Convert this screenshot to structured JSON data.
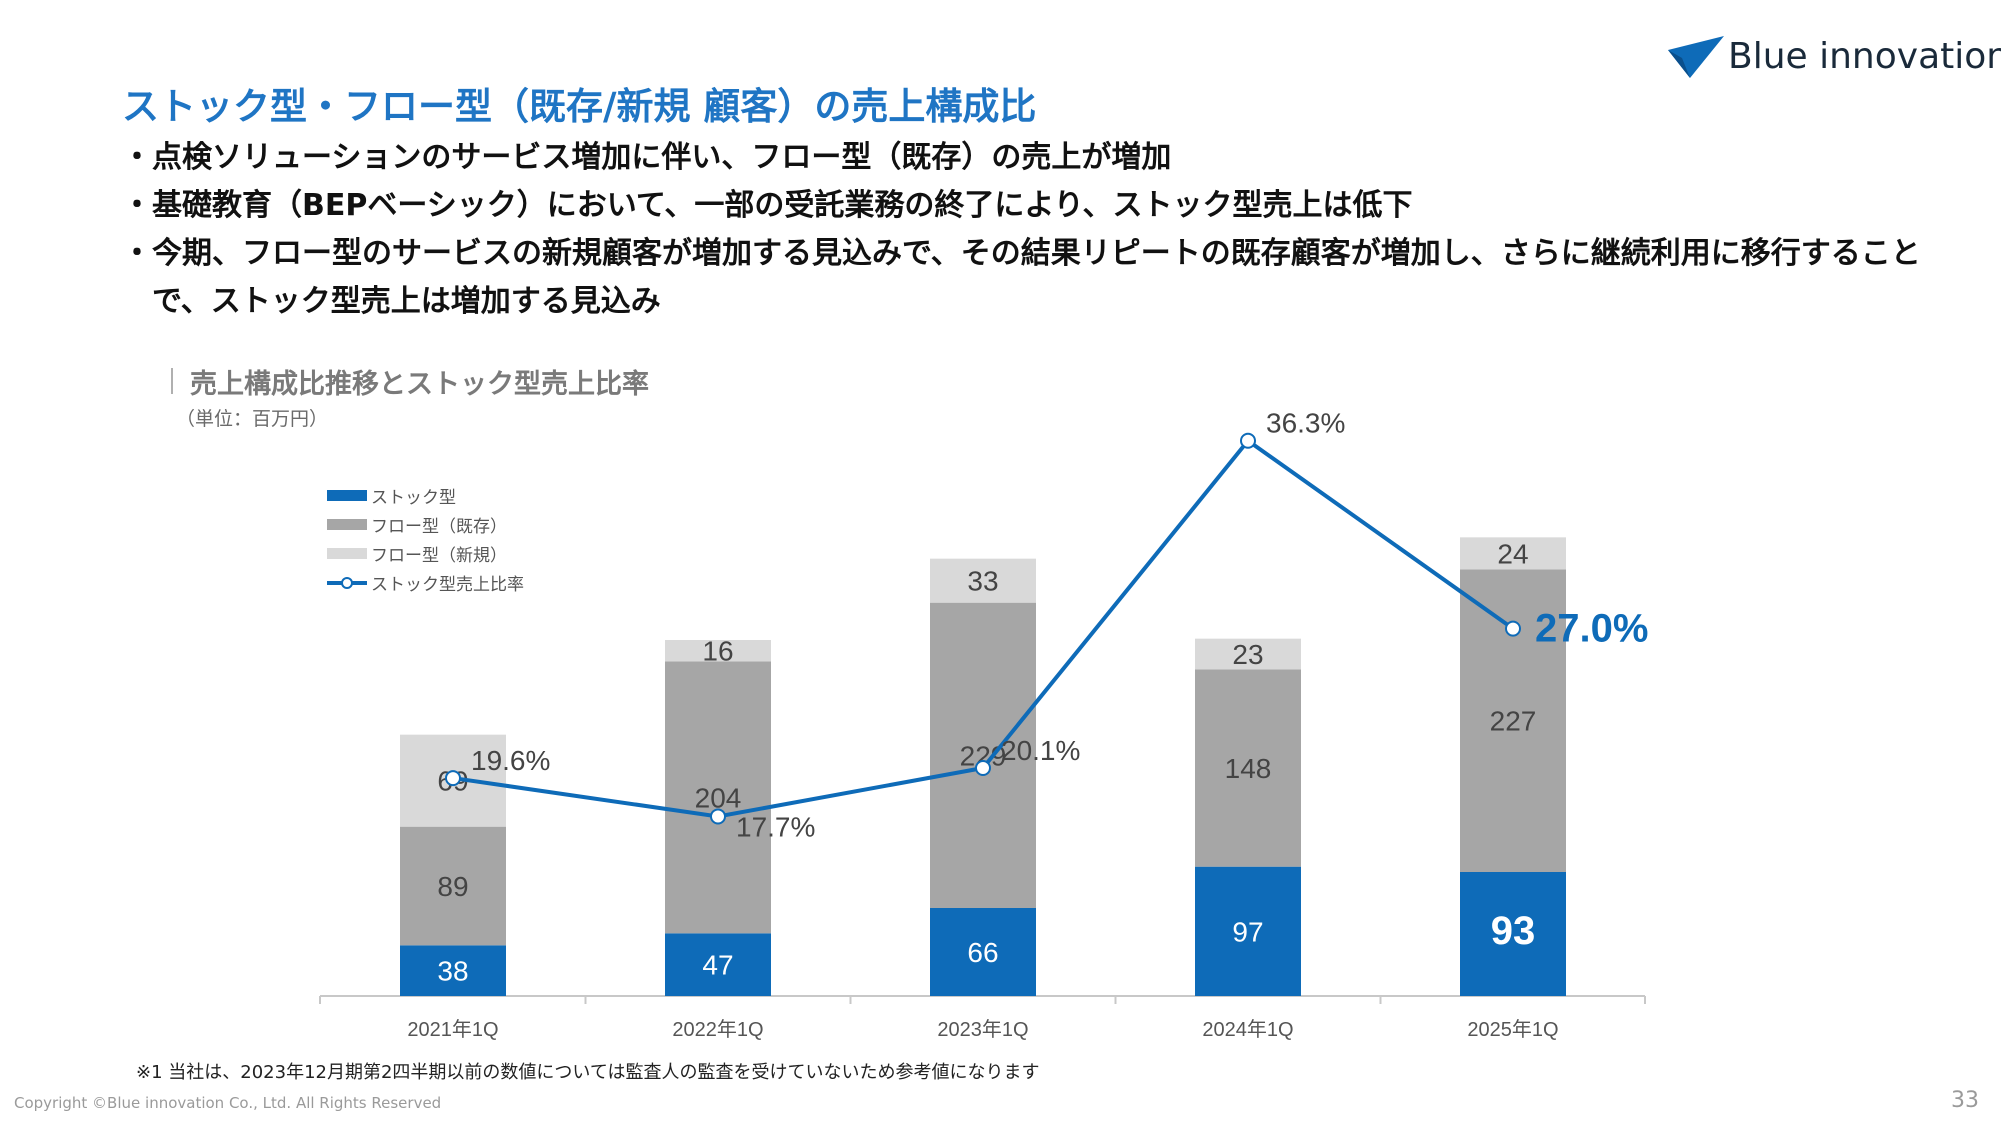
{
  "brand": {
    "name": "Blue innovation",
    "logo_color": "#0e6bb8"
  },
  "title": "ストック型・フロー型（既存/新規 顧客）の売上構成比",
  "bullets": [
    "・点検ソリューションのサービス増加に伴い、フロー型（既存）の売上が増加",
    "・基礎教育（BEPベーシック）において、一部の受託業務の終了により、ストック型売上は低下",
    "・今期、フロー型のサービスの新規顧客が増加する見込みで、その結果リピートの既存顧客が増加し、さらに継続利用に移行することで、ストック型売上は増加する見込み"
  ],
  "section": {
    "title": "売上構成比推移とストック型売上比率",
    "unit": "（単位：百万円）"
  },
  "colors": {
    "stock": "#0e6bb8",
    "flow_existing": "#a6a6a6",
    "flow_new": "#d9d9d9",
    "ratio_line": "#0e6bb8",
    "title": "#1f75c4"
  },
  "chart_data": {
    "type": "bar",
    "stacked": true,
    "categories": [
      "2021年1Q",
      "2022年1Q",
      "2023年1Q",
      "2024年1Q",
      "2025年1Q"
    ],
    "series": [
      {
        "name": "ストック型",
        "values": [
          38,
          47,
          66,
          97,
          93
        ]
      },
      {
        "name": "フロー型（既存）",
        "values": [
          89,
          204,
          229,
          148,
          227
        ]
      },
      {
        "name": "フロー型（新規）",
        "values": [
          69,
          16,
          33,
          23,
          24
        ]
      }
    ],
    "line_series": {
      "name": "ストック型売上比率",
      "values": [
        19.6,
        17.7,
        20.1,
        36.3,
        27.0
      ],
      "labels": [
        "19.6%",
        "17.7%",
        "20.1%",
        "36.3%",
        "27.0%"
      ],
      "ylim": [
        0,
        40
      ]
    },
    "ylim": [
      0,
      400
    ],
    "legend_position": "top-left",
    "grid": false,
    "highlight_last": true
  },
  "footnote": "※1  当社は、2023年12月期第2四半期以前の数値については監査人の監査を受けていないため参考値になります",
  "copyright": "Copyright ©Blue innovation Co., Ltd. All Rights Reserved",
  "page_number": "33"
}
